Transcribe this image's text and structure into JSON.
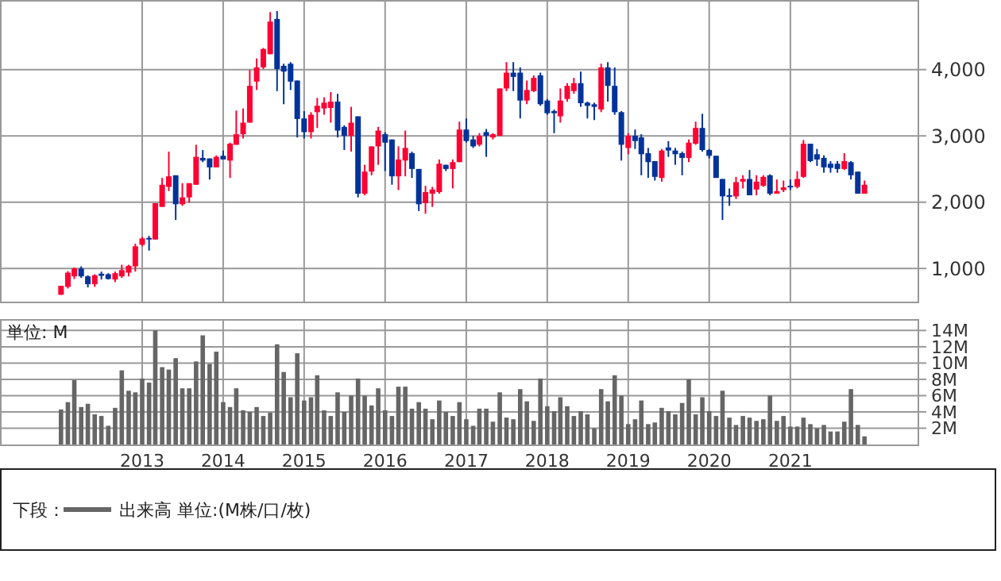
{
  "chart_data": [
    {
      "type": "candlestick",
      "xlim": [
        "2011-04",
        "2022-08"
      ],
      "ylim": [
        500,
        5050
      ],
      "xticks": [
        "2013",
        "2014",
        "2015",
        "2016",
        "2017",
        "2018",
        "2019",
        "2020",
        "2021"
      ],
      "yticks": [
        {
          "value": 1000,
          "label": "1,000"
        },
        {
          "value": 2000,
          "label": "2,000"
        },
        {
          "value": 3000,
          "label": "3,000"
        },
        {
          "value": 4000,
          "label": "4,000"
        }
      ],
      "grid": true,
      "tick_labels": "y",
      "colors": [
        "#ff0033",
        "#ff0033",
        "#ff0033",
        "#003399",
        "#003399",
        "#ff0033",
        "#003399",
        "#003399",
        "#ff0033",
        "#ff0033",
        "#ff0033",
        "#ff0033",
        "#ff0033",
        "#003399",
        "#ff0033",
        "#ff0033",
        "#ff0033",
        "#003399",
        "#ff0033",
        "#ff0033",
        "#ff0033",
        "#003399",
        "#003399",
        "#ff0033",
        "#003399",
        "#ff0033",
        "#ff0033",
        "#ff0033",
        "#ff0033",
        "#ff0033",
        "#ff0033",
        "#ff0033",
        "#003399",
        "#003399",
        "#003399",
        "#003399",
        "#003399",
        "#ff0033",
        "#ff0033",
        "#ff0033",
        "#ff0033",
        "#003399",
        "#003399",
        "#ff0033",
        "#003399",
        "#ff0033",
        "#ff0033",
        "#ff0033",
        "#003399",
        "#003399",
        "#ff0033",
        "#ff0033",
        "#003399",
        "#003399",
        "#ff0033",
        "#ff0033",
        "#ff0033",
        "#003399",
        "#ff0033",
        "#ff0033",
        "#003399",
        "#003399",
        "#ff0033",
        "#003399",
        "#ff0033",
        "#ff0033",
        "#ff0033",
        "#003399",
        "#003399",
        "#ff0033",
        "#ff0033",
        "#003399",
        "#003399",
        "#003399",
        "#ff0033",
        "#ff0033",
        "#ff0033",
        "#003399",
        "#003399",
        "#003399",
        "#ff0033",
        "#003399",
        "#003399",
        "#003399",
        "#ff0033",
        "#003399",
        "#003399",
        "#003399",
        "#003399",
        "#ff0033",
        "#003399",
        "#003399",
        "#003399",
        "#ff0033",
        "#ff0033",
        "#003399",
        "#003399",
        "#003399",
        "#003399",
        "#003399",
        "#ff0033",
        "#ff0033",
        "#003399",
        "#ff0033",
        "#ff0033",
        "#003399",
        "#ff0033",
        "#ff0033",
        "#003399",
        "#ff0033",
        "#ff0033",
        "#003399",
        "#003399",
        "#003399",
        "#003399",
        "#003399",
        "#ff0033",
        "#003399",
        "#003399",
        "#ff0033"
      ],
      "x": [
        "2012-01",
        "2012-02",
        "2012-03",
        "2012-04",
        "2012-05",
        "2012-06",
        "2012-07",
        "2012-08",
        "2012-09",
        "2012-10",
        "2012-11",
        "2012-12",
        "2013-01",
        "2013-02",
        "2013-03",
        "2013-04",
        "2013-05",
        "2013-06",
        "2013-07",
        "2013-08",
        "2013-09",
        "2013-10",
        "2013-11",
        "2013-12",
        "2014-01",
        "2014-02",
        "2014-03",
        "2014-04",
        "2014-05",
        "2014-06",
        "2014-07",
        "2014-08",
        "2014-09",
        "2014-10",
        "2014-11",
        "2014-12",
        "2015-01",
        "2015-02",
        "2015-03",
        "2015-04",
        "2015-05",
        "2015-06",
        "2015-07",
        "2015-08",
        "2015-09",
        "2015-10",
        "2015-11",
        "2015-12",
        "2016-01",
        "2016-02",
        "2016-03",
        "2016-04",
        "2016-05",
        "2016-06",
        "2016-07",
        "2016-08",
        "2016-09",
        "2016-10",
        "2016-11",
        "2016-12",
        "2017-01",
        "2017-02",
        "2017-03",
        "2017-04",
        "2017-05",
        "2017-06",
        "2017-07",
        "2017-08",
        "2017-09",
        "2017-10",
        "2017-11",
        "2017-12",
        "2018-01",
        "2018-02",
        "2018-03",
        "2018-04",
        "2018-05",
        "2018-06",
        "2018-07",
        "2018-08",
        "2018-09",
        "2018-10",
        "2018-11",
        "2018-12",
        "2019-01",
        "2019-02",
        "2019-03",
        "2019-04",
        "2019-05",
        "2019-06",
        "2019-07",
        "2019-08",
        "2019-09",
        "2019-10",
        "2019-11",
        "2019-12",
        "2020-01",
        "2020-02",
        "2020-03",
        "2020-04",
        "2020-05",
        "2020-06",
        "2020-07",
        "2020-08",
        "2020-09",
        "2020-10",
        "2020-11",
        "2020-12",
        "2021-01",
        "2021-02",
        "2021-03",
        "2021-04",
        "2021-05",
        "2021-06",
        "2021-07",
        "2021-08",
        "2021-09",
        "2021-10",
        "2021-11",
        "2021-12"
      ],
      "ohlc": [
        [
          603,
          738,
          603,
          738
        ],
        [
          722,
          960,
          698,
          937
        ],
        [
          881,
          1016,
          841,
          1000
        ],
        [
          1000,
          1032,
          857,
          881
        ],
        [
          881,
          897,
          714,
          762
        ],
        [
          762,
          913,
          722,
          897
        ],
        [
          921,
          953,
          833,
          889
        ],
        [
          913,
          929,
          833,
          841
        ],
        [
          833,
          953,
          794,
          929
        ],
        [
          881,
          1056,
          857,
          976
        ],
        [
          937,
          1056,
          881,
          1040
        ],
        [
          1032,
          1373,
          953,
          1334
        ],
        [
          1357,
          1477,
          1334,
          1453
        ],
        [
          1461,
          1492,
          1270,
          1437
        ],
        [
          1437,
          1985,
          1437,
          1985
        ],
        [
          1929,
          2366,
          1929,
          2263
        ],
        [
          2231,
          2763,
          2167,
          2390
        ],
        [
          2406,
          2406,
          1731,
          1969
        ],
        [
          1969,
          2287,
          1945,
          2072
        ],
        [
          2072,
          2287,
          1993,
          2287
        ],
        [
          2263,
          2866,
          2263,
          2684
        ],
        [
          2668,
          2787,
          2604,
          2628
        ],
        [
          2660,
          2660,
          2342,
          2525
        ],
        [
          2525,
          2707,
          2525,
          2684
        ],
        [
          2700,
          2779,
          2644,
          2644
        ],
        [
          2628,
          2898,
          2366,
          2882
        ],
        [
          2866,
          3382,
          2866,
          3025
        ],
        [
          3025,
          3414,
          2961,
          3200
        ],
        [
          3200,
          3994,
          3200,
          3755
        ],
        [
          3819,
          4168,
          3692,
          4033
        ],
        [
          4033,
          4327,
          4009,
          4311
        ],
        [
          4232,
          4867,
          4232,
          4724
        ],
        [
          4764,
          4883,
          3676,
          4009
        ],
        [
          4057,
          4089,
          3478,
          3970
        ],
        [
          4089,
          4113,
          3692,
          3819
        ],
        [
          3835,
          3835,
          2977,
          3255
        ],
        [
          3263,
          3374,
          2961,
          3057
        ],
        [
          3057,
          3358,
          2961,
          3319
        ],
        [
          3358,
          3573,
          3120,
          3454
        ],
        [
          3414,
          3581,
          3319,
          3501
        ],
        [
          3422,
          3660,
          3200,
          3517
        ],
        [
          3517,
          3636,
          2977,
          3080
        ],
        [
          3136,
          3160,
          2787,
          3001
        ],
        [
          3001,
          3438,
          2763,
          3200
        ],
        [
          3295,
          3295,
          2072,
          2128
        ],
        [
          2128,
          2564,
          2104,
          2461
        ],
        [
          2461,
          2842,
          2406,
          2842
        ],
        [
          2842,
          3136,
          2564,
          3080
        ],
        [
          3025,
          3057,
          2469,
          2898
        ],
        [
          2946,
          2946,
          2263,
          2390
        ],
        [
          2390,
          2842,
          2183,
          2644
        ],
        [
          2628,
          3080,
          2390,
          2818
        ],
        [
          2739,
          2763,
          2366,
          2501
        ],
        [
          2501,
          2501,
          1866,
          1969
        ],
        [
          1985,
          2247,
          1826,
          2152
        ],
        [
          2128,
          2231,
          1929,
          2191
        ],
        [
          2152,
          2644,
          2128,
          2580
        ],
        [
          2564,
          2564,
          2469,
          2501
        ],
        [
          2501,
          2644,
          2207,
          2604
        ],
        [
          2604,
          3215,
          2604,
          3096
        ],
        [
          3096,
          3263,
          2898,
          2922
        ],
        [
          2946,
          3001,
          2818,
          2842
        ],
        [
          2866,
          3041,
          2842,
          3001
        ],
        [
          3057,
          3104,
          2684,
          3001
        ],
        [
          2977,
          3041,
          2946,
          3025
        ],
        [
          3001,
          3716,
          3001,
          3716
        ],
        [
          3716,
          4113,
          3676,
          3954
        ],
        [
          3954,
          4113,
          3676,
          3890
        ],
        [
          3954,
          4033,
          3263,
          3533
        ],
        [
          3533,
          3835,
          3478,
          3692
        ],
        [
          3676,
          3914,
          3660,
          3875
        ],
        [
          3914,
          3954,
          3454,
          3478
        ],
        [
          3533,
          3557,
          3319,
          3342
        ],
        [
          3374,
          3398,
          3041,
          3342
        ],
        [
          3295,
          3716,
          3200,
          3533
        ],
        [
          3557,
          3795,
          3517,
          3755
        ],
        [
          3676,
          3875,
          3636,
          3795
        ],
        [
          3795,
          3970,
          3438,
          3493
        ],
        [
          3501,
          3517,
          3263,
          3454
        ],
        [
          3477,
          3501,
          3239,
          3438
        ],
        [
          3398,
          4089,
          3358,
          4033
        ],
        [
          4033,
          4113,
          3517,
          3755
        ],
        [
          3755,
          4033,
          3319,
          3358
        ],
        [
          3358,
          3374,
          2628,
          2866
        ],
        [
          2818,
          3041,
          2723,
          3001
        ],
        [
          3001,
          3096,
          2803,
          2922
        ],
        [
          2977,
          3025,
          2406,
          2723
        ],
        [
          2739,
          2818,
          2366,
          2604
        ],
        [
          2620,
          2620,
          2326,
          2382
        ],
        [
          2366,
          2803,
          2310,
          2779
        ],
        [
          2826,
          2922,
          2684,
          2779
        ],
        [
          2779,
          2818,
          2564,
          2723
        ],
        [
          2739,
          2763,
          2406,
          2668
        ],
        [
          2668,
          2946,
          2604,
          2898
        ],
        [
          2882,
          3215,
          2866,
          3120
        ],
        [
          3120,
          3334,
          2763,
          2787
        ],
        [
          2787,
          2803,
          2660,
          2700
        ],
        [
          2700,
          2700,
          2366,
          2366
        ],
        [
          2350,
          2350,
          1731,
          2088
        ],
        [
          2104,
          2207,
          1945,
          2088
        ],
        [
          2088,
          2382,
          2048,
          2302
        ],
        [
          2310,
          2406,
          2207,
          2350
        ],
        [
          2350,
          2485,
          2104,
          2104
        ],
        [
          2191,
          2406,
          2104,
          2310
        ],
        [
          2247,
          2406,
          2231,
          2382
        ],
        [
          2406,
          2421,
          2104,
          2128
        ],
        [
          2128,
          2342,
          2128,
          2167
        ],
        [
          2183,
          2326,
          2152,
          2223
        ],
        [
          2247,
          2342,
          2183,
          2231
        ],
        [
          2231,
          2469,
          2207,
          2350
        ],
        [
          2382,
          2938,
          2366,
          2882
        ],
        [
          2882,
          2882,
          2604,
          2620
        ],
        [
          2723,
          2803,
          2548,
          2644
        ],
        [
          2668,
          2707,
          2445,
          2525
        ],
        [
          2580,
          2620,
          2445,
          2517
        ],
        [
          2580,
          2620,
          2445,
          2501
        ],
        [
          2501,
          2739,
          2485,
          2620
        ],
        [
          2604,
          2620,
          2342,
          2406
        ],
        [
          2461,
          2461,
          2128,
          2128
        ],
        [
          2128,
          2326,
          2128,
          2263
        ]
      ]
    },
    {
      "type": "bar",
      "xlim": [
        "2011-04",
        "2022-08"
      ],
      "ylim": [
        0,
        15.4
      ],
      "xticks": [
        "2013",
        "2014",
        "2015",
        "2016",
        "2017",
        "2018",
        "2019",
        "2020",
        "2021"
      ],
      "yticks": [
        {
          "value": 2,
          "label": "2M"
        },
        {
          "value": 4,
          "label": "4M"
        },
        {
          "value": 6,
          "label": "6M"
        },
        {
          "value": 8,
          "label": "8M"
        },
        {
          "value": 10,
          "label": "10M"
        },
        {
          "value": 12,
          "label": "12M"
        },
        {
          "value": 14,
          "label": "14M"
        }
      ],
      "grid": true,
      "legend": "bottom",
      "legend_title": "下段：",
      "annotations": [
        "単位: M"
      ],
      "x": [
        "2012-01",
        "2012-02",
        "2012-03",
        "2012-04",
        "2012-05",
        "2012-06",
        "2012-07",
        "2012-08",
        "2012-09",
        "2012-10",
        "2012-11",
        "2012-12",
        "2013-01",
        "2013-02",
        "2013-03",
        "2013-04",
        "2013-05",
        "2013-06",
        "2013-07",
        "2013-08",
        "2013-09",
        "2013-10",
        "2013-11",
        "2013-12",
        "2014-01",
        "2014-02",
        "2014-03",
        "2014-04",
        "2014-05",
        "2014-06",
        "2014-07",
        "2014-08",
        "2014-09",
        "2014-10",
        "2014-11",
        "2014-12",
        "2015-01",
        "2015-02",
        "2015-03",
        "2015-04",
        "2015-05",
        "2015-06",
        "2015-07",
        "2015-08",
        "2015-09",
        "2015-10",
        "2015-11",
        "2015-12",
        "2016-01",
        "2016-02",
        "2016-03",
        "2016-04",
        "2016-05",
        "2016-06",
        "2016-07",
        "2016-08",
        "2016-09",
        "2016-10",
        "2016-11",
        "2016-12",
        "2017-01",
        "2017-02",
        "2017-03",
        "2017-04",
        "2017-05",
        "2017-06",
        "2017-07",
        "2017-08",
        "2017-09",
        "2017-10",
        "2017-11",
        "2017-12",
        "2018-01",
        "2018-02",
        "2018-03",
        "2018-04",
        "2018-05",
        "2018-06",
        "2018-07",
        "2018-08",
        "2018-09",
        "2018-10",
        "2018-11",
        "2018-12",
        "2019-01",
        "2019-02",
        "2019-03",
        "2019-04",
        "2019-05",
        "2019-06",
        "2019-07",
        "2019-08",
        "2019-09",
        "2019-10",
        "2019-11",
        "2019-12",
        "2020-01",
        "2020-02",
        "2020-03",
        "2020-04",
        "2020-05",
        "2020-06",
        "2020-07",
        "2020-08",
        "2020-09",
        "2020-10",
        "2020-11",
        "2020-12",
        "2021-01",
        "2021-02",
        "2021-03",
        "2021-04",
        "2021-05",
        "2021-06",
        "2021-07",
        "2021-08",
        "2021-09",
        "2021-10",
        "2021-11",
        "2021-12"
      ],
      "series": [
        {
          "name": "出来高 単位:(M株/口/枚)",
          "color": "#666666",
          "values": [
            4.3,
            5.2,
            7.9,
            4.6,
            5.0,
            3.7,
            3.5,
            2.3,
            4.5,
            9.1,
            6.6,
            6.4,
            8.1,
            7.6,
            14.0,
            9.5,
            9.2,
            10.6,
            6.9,
            6.9,
            10.2,
            13.4,
            9.9,
            11.4,
            5.2,
            4.6,
            6.9,
            4.2,
            4.0,
            4.6,
            3.5,
            3.9,
            12.3,
            8.9,
            5.8,
            11.2,
            5.4,
            5.8,
            8.5,
            4.2,
            3.5,
            6.4,
            4.0,
            6.0,
            8.1,
            6.0,
            4.8,
            6.9,
            4.2,
            3.5,
            7.1,
            7.1,
            4.4,
            5.2,
            4.4,
            3.1,
            5.4,
            4.0,
            3.5,
            5.2,
            3.1,
            2.3,
            4.4,
            4.4,
            2.8,
            6.4,
            3.3,
            3.1,
            6.8,
            5.3,
            2.9,
            8.1,
            4.7,
            4.1,
            5.8,
            4.7,
            3.5,
            4.1,
            3.7,
            2.0,
            6.8,
            5.3,
            8.5,
            6.0,
            2.5,
            3.1,
            5.4,
            2.5,
            2.7,
            4.5,
            4.1,
            3.7,
            5.1,
            8.0,
            3.7,
            5.8,
            4.1,
            3.5,
            6.6,
            3.3,
            2.4,
            3.5,
            3.3,
            2.9,
            3.1,
            6.0,
            2.9,
            3.5,
            2.2,
            2.2,
            3.3,
            2.5,
            2.0,
            2.4,
            1.6,
            1.6,
            2.8,
            6.8,
            2.4,
            1.0
          ]
        }
      ]
    }
  ]
}
